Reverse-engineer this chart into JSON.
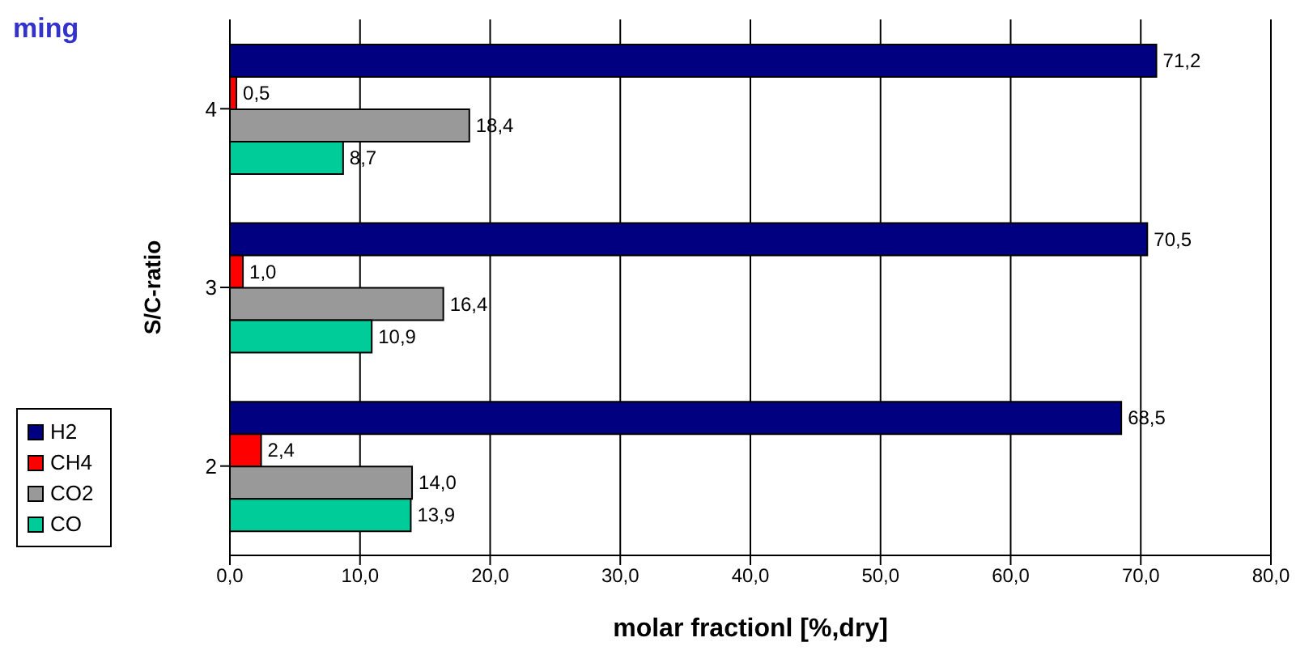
{
  "chart_data": {
    "type": "bar",
    "orientation": "horizontal",
    "title": "ming",
    "xlabel": "molar fractionl [%,dry]",
    "ylabel": "S/C-ratio",
    "categories": [
      "4",
      "3",
      "2"
    ],
    "series": [
      {
        "name": "H2",
        "color": "#000080",
        "values": [
          71.2,
          70.5,
          68.5
        ],
        "value_labels": [
          "71,2",
          "70,5",
          "68,5"
        ]
      },
      {
        "name": "CH4",
        "color": "#ff0000",
        "values": [
          0.5,
          1.0,
          2.4
        ],
        "value_labels": [
          "0,5",
          "1,0",
          "2,4"
        ]
      },
      {
        "name": "CO2",
        "color": "#999999",
        "values": [
          18.4,
          16.4,
          14.0
        ],
        "value_labels": [
          "18,4",
          "16,4",
          "14,0"
        ]
      },
      {
        "name": "CO",
        "color": "#00cc99",
        "values": [
          8.7,
          10.9,
          13.9
        ],
        "value_labels": [
          "8,7",
          "10,9",
          "13,9"
        ]
      }
    ],
    "xlim": [
      0,
      80
    ],
    "xticks": [
      {
        "value": 0,
        "label": "0,0"
      },
      {
        "value": 10,
        "label": "10,0"
      },
      {
        "value": 20,
        "label": "20,0"
      },
      {
        "value": 30,
        "label": "30,0"
      },
      {
        "value": 40,
        "label": "40,0"
      },
      {
        "value": 50,
        "label": "50,0"
      },
      {
        "value": 60,
        "label": "60,0"
      },
      {
        "value": 70,
        "label": "70,0"
      },
      {
        "value": 80,
        "label": "80,0"
      }
    ],
    "grid": "x",
    "legend": "left"
  }
}
